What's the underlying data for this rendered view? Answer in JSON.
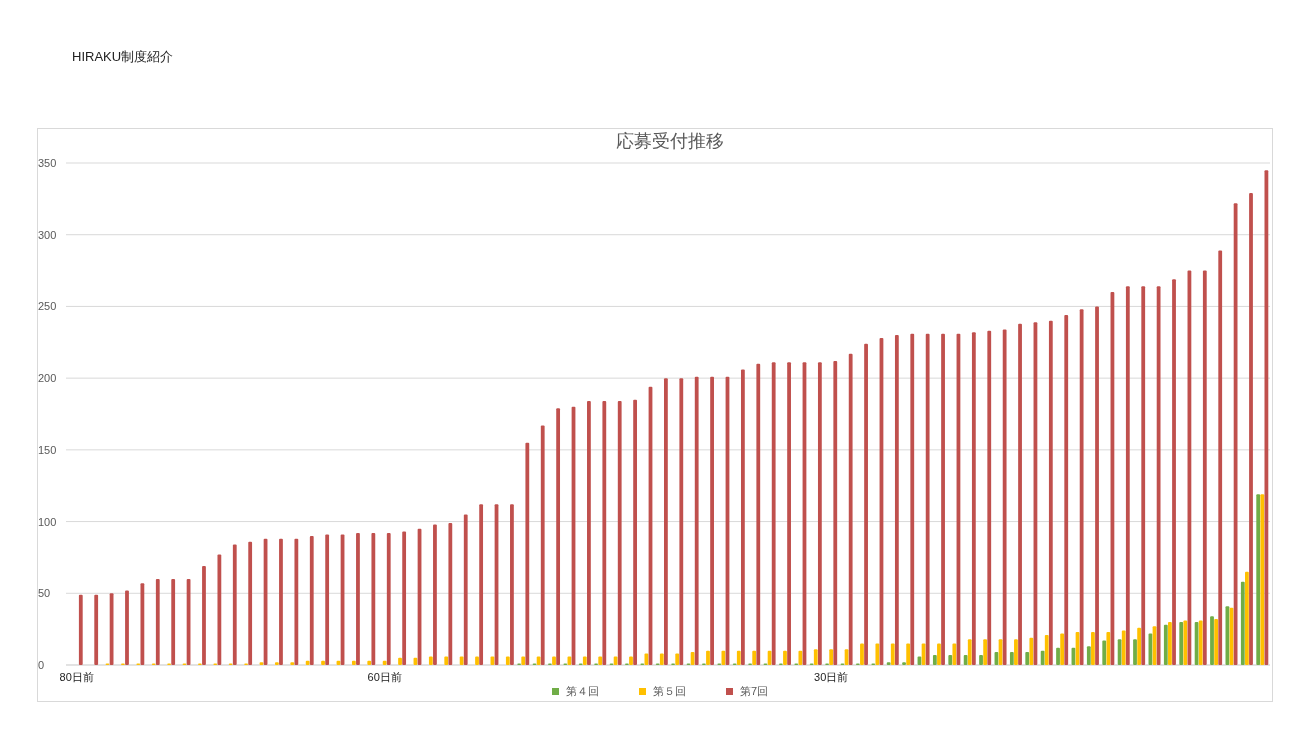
{
  "chart_data": {
    "type": "bar",
    "title": "応募受付推移",
    "annotations": [
      "HIRAKU制度紹介"
    ],
    "categories": [
      "80日前",
      null,
      null,
      null,
      null,
      null,
      null,
      null,
      null,
      null,
      null,
      null,
      null,
      null,
      null,
      null,
      null,
      null,
      null,
      null,
      "60日前",
      null,
      null,
      null,
      null,
      null,
      null,
      null,
      null,
      null,
      null,
      null,
      null,
      null,
      null,
      null,
      null,
      null,
      null,
      null,
      null,
      null,
      null,
      null,
      null,
      null,
      null,
      null,
      null,
      "30日前",
      null,
      null,
      null,
      null,
      null,
      null,
      null,
      null,
      null,
      null,
      null,
      null,
      null,
      null,
      null,
      null,
      null,
      null,
      null,
      null,
      null,
      null,
      null,
      null,
      null,
      null,
      null,
      null
    ],
    "series": [
      {
        "name": "第４回",
        "color": "#70ad47",
        "values": [
          0,
          0,
          0,
          0,
          0,
          0,
          0,
          0,
          0,
          0,
          0,
          0,
          0,
          0,
          0,
          0,
          0,
          0,
          0,
          0,
          0,
          0,
          0,
          0,
          0,
          0,
          0,
          0,
          0,
          1,
          1,
          1,
          1,
          1,
          1,
          1,
          1,
          1,
          1,
          1,
          1,
          1,
          1,
          1,
          1,
          1,
          1,
          1,
          1,
          1,
          1,
          1,
          1,
          2,
          2,
          6,
          7,
          7,
          7,
          7,
          9,
          9,
          9,
          10,
          12,
          12,
          13,
          17,
          18,
          18,
          22,
          28,
          30,
          30,
          34,
          41,
          58,
          119
        ]
      },
      {
        "name": "第５回",
        "color": "#ffc000",
        "values": [
          0,
          0,
          1,
          1,
          1,
          1,
          1,
          1,
          1,
          1,
          1,
          1,
          2,
          2,
          2,
          3,
          3,
          3,
          3,
          3,
          3,
          5,
          5,
          6,
          6,
          6,
          6,
          6,
          6,
          6,
          6,
          6,
          6,
          6,
          6,
          6,
          6,
          8,
          8,
          8,
          9,
          10,
          10,
          10,
          10,
          10,
          10,
          10,
          11,
          11,
          11,
          15,
          15,
          15,
          15,
          15,
          15,
          15,
          18,
          18,
          18,
          18,
          19,
          21,
          22,
          23,
          23,
          23,
          24,
          26,
          27,
          30,
          31,
          31,
          32,
          40,
          65,
          119
        ]
      },
      {
        "name": "第7回",
        "color": "#c0504d",
        "values": [
          49,
          49,
          50,
          52,
          57,
          60,
          60,
          60,
          69,
          77,
          84,
          86,
          88,
          88,
          88,
          90,
          91,
          91,
          92,
          92,
          92,
          93,
          95,
          98,
          99,
          105,
          112,
          112,
          112,
          155,
          167,
          179,
          180,
          184,
          184,
          184,
          185,
          194,
          200,
          200,
          201,
          201,
          201,
          206,
          210,
          211,
          211,
          211,
          211,
          212,
          217,
          224,
          228,
          230,
          231,
          231,
          231,
          231,
          232,
          233,
          234,
          238,
          239,
          240,
          244,
          248,
          250,
          260,
          264,
          264,
          264,
          269,
          275,
          275,
          289,
          322,
          329,
          345
        ]
      }
    ],
    "ylim": [
      0,
      350
    ],
    "yticks": [
      0,
      50,
      100,
      150,
      200,
      250,
      300,
      350
    ],
    "grid": "y",
    "legend": "bottom"
  }
}
